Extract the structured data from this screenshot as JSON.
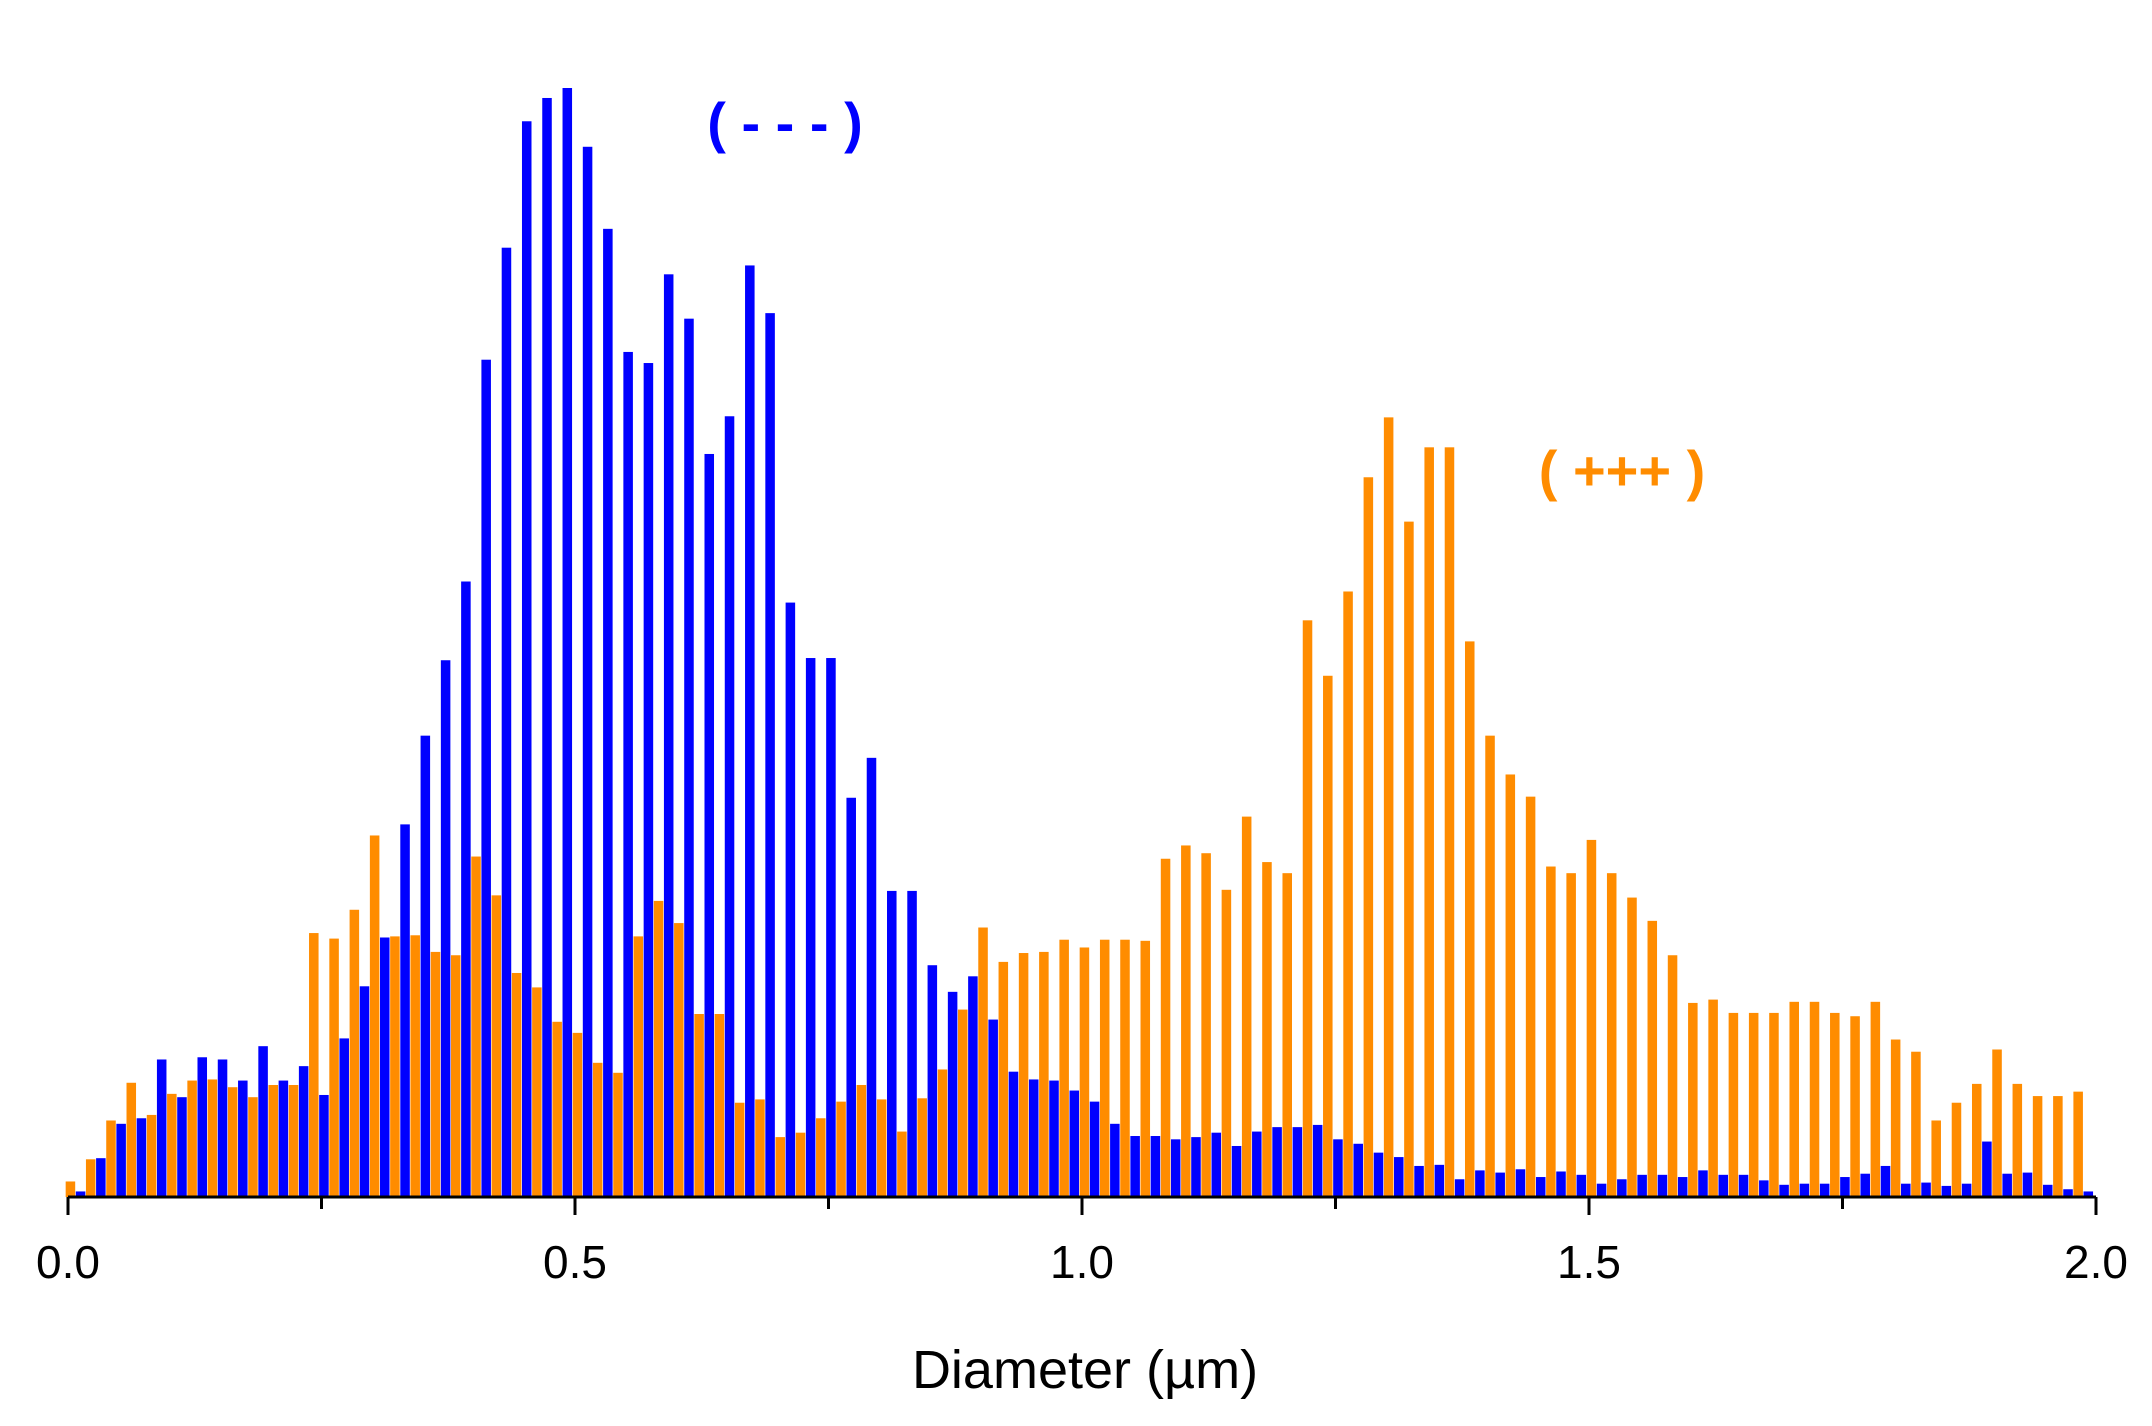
{
  "chart_data": {
    "type": "bar",
    "xlabel": "Diameter (µm)",
    "ylabel": "",
    "title": "",
    "xlim": [
      0.0,
      2.0
    ],
    "ylim": [
      0,
      1
    ],
    "xticks": [
      "0.0",
      "0.5",
      "1.0",
      "1.5",
      "2.0"
    ],
    "bin_width": 0.02,
    "grid": false,
    "legend": "none",
    "x": [
      0.0,
      0.02,
      0.04,
      0.06,
      0.08,
      0.1,
      0.12,
      0.14,
      0.16,
      0.18,
      0.2,
      0.22,
      0.24,
      0.26,
      0.28,
      0.3,
      0.32,
      0.34,
      0.36,
      0.38,
      0.4,
      0.42,
      0.44,
      0.46,
      0.48,
      0.5,
      0.52,
      0.54,
      0.56,
      0.58,
      0.6,
      0.62,
      0.64,
      0.66,
      0.68,
      0.7,
      0.72,
      0.74,
      0.76,
      0.78,
      0.8,
      0.82,
      0.84,
      0.86,
      0.88,
      0.9,
      0.92,
      0.94,
      0.96,
      0.98,
      1.0,
      1.02,
      1.04,
      1.06,
      1.08,
      1.1,
      1.12,
      1.14,
      1.16,
      1.18,
      1.2,
      1.22,
      1.24,
      1.26,
      1.28,
      1.3,
      1.32,
      1.34,
      1.36,
      1.38,
      1.4,
      1.42,
      1.44,
      1.46,
      1.48,
      1.5,
      1.52,
      1.54,
      1.56,
      1.58,
      1.6,
      1.62,
      1.64,
      1.66,
      1.68,
      1.7,
      1.72,
      1.74,
      1.76,
      1.78,
      1.8,
      1.82,
      1.84,
      1.86,
      1.88,
      1.9,
      1.92,
      1.94,
      1.96,
      1.98
    ],
    "series": [
      {
        "name": "( - - - )",
        "color": "#0000ff",
        "values": [
          0.005,
          0.035,
          0.066,
          0.071,
          0.124,
          0.09,
          0.126,
          0.124,
          0.105,
          0.136,
          0.105,
          0.118,
          0.092,
          0.143,
          0.19,
          0.234,
          0.336,
          0.416,
          0.484,
          0.555,
          0.755,
          0.856,
          0.97,
          0.991,
          1.0,
          0.947,
          0.873,
          0.762,
          0.752,
          0.832,
          0.792,
          0.67,
          0.704,
          0.84,
          0.797,
          0.536,
          0.486,
          0.486,
          0.36,
          0.396,
          0.276,
          0.276,
          0.209,
          0.185,
          0.199,
          0.16,
          0.113,
          0.106,
          0.105,
          0.096,
          0.086,
          0.066,
          0.055,
          0.055,
          0.052,
          0.054,
          0.058,
          0.046,
          0.059,
          0.063,
          0.063,
          0.065,
          0.052,
          0.048,
          0.04,
          0.036,
          0.028,
          0.029,
          0.016,
          0.024,
          0.022,
          0.025,
          0.018,
          0.023,
          0.02,
          0.012,
          0.016,
          0.02,
          0.02,
          0.018,
          0.024,
          0.02,
          0.02,
          0.015,
          0.011,
          0.012,
          0.012,
          0.018,
          0.021,
          0.028,
          0.012,
          0.013,
          0.01,
          0.012,
          0.05,
          0.021,
          0.022,
          0.011,
          0.007,
          0.005
        ]
      },
      {
        "name": "( +++ )",
        "color": "#ff8c00",
        "values": [
          0.014,
          0.034,
          0.069,
          0.103,
          0.074,
          0.093,
          0.105,
          0.106,
          0.099,
          0.09,
          0.101,
          0.101,
          0.238,
          0.233,
          0.259,
          0.326,
          0.235,
          0.236,
          0.221,
          0.218,
          0.307,
          0.272,
          0.202,
          0.189,
          0.158,
          0.148,
          0.121,
          0.112,
          0.235,
          0.267,
          0.247,
          0.165,
          0.165,
          0.085,
          0.088,
          0.054,
          0.058,
          0.071,
          0.086,
          0.101,
          0.088,
          0.059,
          0.089,
          0.115,
          0.169,
          0.243,
          0.212,
          0.22,
          0.221,
          0.232,
          0.225,
          0.232,
          0.232,
          0.231,
          0.305,
          0.317,
          0.31,
          0.277,
          0.343,
          0.302,
          0.292,
          0.52,
          0.47,
          0.546,
          0.649,
          0.703,
          0.609,
          0.676,
          0.676,
          0.501,
          0.416,
          0.381,
          0.361,
          0.298,
          0.292,
          0.322,
          0.292,
          0.27,
          0.249,
          0.218,
          0.175,
          0.178,
          0.166,
          0.166,
          0.166,
          0.176,
          0.176,
          0.166,
          0.163,
          0.176,
          0.142,
          0.131,
          0.069,
          0.085,
          0.102,
          0.133,
          0.102,
          0.091,
          0.091,
          0.095
        ]
      }
    ]
  }
}
